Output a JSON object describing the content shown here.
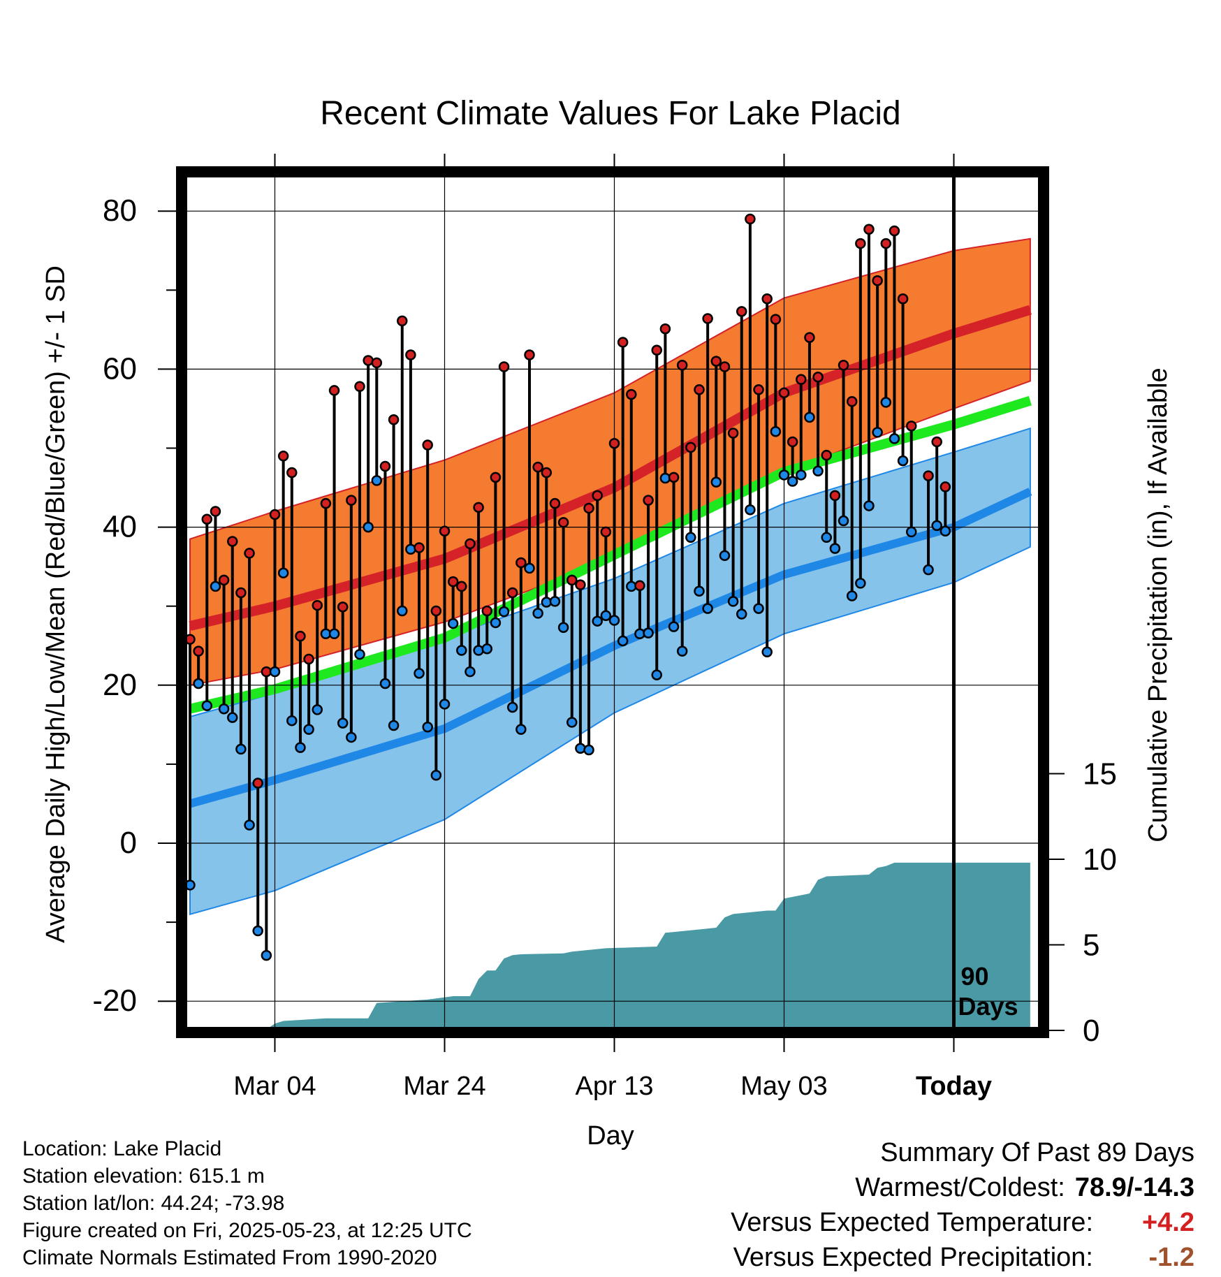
{
  "chart_data": {
    "type": "line",
    "title": "Recent Climate Values For Lake Placid",
    "xlabel": "Day",
    "ylabel": "Average Daily High/Low/Mean (Red/Blue/Green) +/- 1 SD",
    "y2label": "Cumulative Precipitation (in), If Available",
    "x_start_date": "2025-02-22",
    "x_end_date": "2025-06-01",
    "today_date": "2025-05-23",
    "today_label": "Today",
    "today_annotation": [
      "90",
      "Days"
    ],
    "ylim": [
      -24,
      85
    ],
    "y_ticks": [
      -20,
      0,
      20,
      40,
      60,
      80
    ],
    "y2lim": [
      0,
      20
    ],
    "y2_ticks": [
      0,
      5,
      10,
      15
    ],
    "x_tick_dates": [
      "2025-03-04",
      "2025-03-24",
      "2025-04-13",
      "2025-05-03",
      "2025-05-23"
    ],
    "x_tick_labels": [
      "Mar 04",
      "Mar 24",
      "Apr 13",
      "May 03",
      "Today"
    ],
    "grid": true,
    "normals": {
      "x": [
        "2025-02-22",
        "2025-03-04",
        "2025-03-24",
        "2025-04-13",
        "2025-05-03",
        "2025-05-23",
        "2025-06-01"
      ],
      "high_mean": [
        27.5,
        30.0,
        36.0,
        45.0,
        57.0,
        64.5,
        67.5
      ],
      "high_upper": [
        38.5,
        42.0,
        48.5,
        57.0,
        69.0,
        75.0,
        76.5
      ],
      "high_lower": [
        20.0,
        22.0,
        28.0,
        36.0,
        47.0,
        55.0,
        58.5
      ],
      "avg_mean": [
        17.0,
        19.5,
        26.0,
        36.5,
        47.0,
        53.0,
        56.0
      ],
      "low_mean": [
        5.0,
        8.0,
        14.5,
        25.0,
        34.0,
        40.0,
        44.5
      ],
      "low_upper": [
        16.0,
        19.0,
        26.0,
        33.5,
        43.0,
        49.5,
        52.5
      ],
      "low_lower": [
        -9.0,
        -6.0,
        3.0,
        16.5,
        26.5,
        33.0,
        37.5
      ]
    },
    "series": [
      {
        "name": "Daily High",
        "color": "#d32020",
        "x": [
          "2025-02-22",
          "2025-02-23",
          "2025-02-24",
          "2025-02-25",
          "2025-02-26",
          "2025-02-27",
          "2025-02-28",
          "2025-03-01",
          "2025-03-02",
          "2025-03-03",
          "2025-03-04",
          "2025-03-05",
          "2025-03-06",
          "2025-03-07",
          "2025-03-08",
          "2025-03-09",
          "2025-03-10",
          "2025-03-11",
          "2025-03-12",
          "2025-03-13",
          "2025-03-14",
          "2025-03-15",
          "2025-03-16",
          "2025-03-17",
          "2025-03-18",
          "2025-03-19",
          "2025-03-20",
          "2025-03-21",
          "2025-03-22",
          "2025-03-23",
          "2025-03-24",
          "2025-03-25",
          "2025-03-26",
          "2025-03-27",
          "2025-03-28",
          "2025-03-29",
          "2025-03-30",
          "2025-03-31",
          "2025-04-01",
          "2025-04-02",
          "2025-04-03",
          "2025-04-04",
          "2025-04-05",
          "2025-04-06",
          "2025-04-07",
          "2025-04-08",
          "2025-04-09",
          "2025-04-10",
          "2025-04-11",
          "2025-04-12",
          "2025-04-13",
          "2025-04-14",
          "2025-04-15",
          "2025-04-16",
          "2025-04-17",
          "2025-04-18",
          "2025-04-19",
          "2025-04-20",
          "2025-04-21",
          "2025-04-22",
          "2025-04-23",
          "2025-04-24",
          "2025-04-25",
          "2025-04-26",
          "2025-04-27",
          "2025-04-28",
          "2025-04-29",
          "2025-04-30",
          "2025-05-01",
          "2025-05-02",
          "2025-05-03",
          "2025-05-04",
          "2025-05-05",
          "2025-05-06",
          "2025-05-07",
          "2025-05-08",
          "2025-05-09",
          "2025-05-10",
          "2025-05-11",
          "2025-05-12",
          "2025-05-13",
          "2025-05-14",
          "2025-05-15",
          "2025-05-16",
          "2025-05-17",
          "2025-05-18",
          "2025-05-19",
          "2025-05-20",
          "2025-05-21",
          "2025-05-22"
        ],
        "values": [
          25.8,
          24.3,
          41.0,
          42.0,
          33.3,
          38.2,
          31.7,
          36.7,
          7.6,
          21.7,
          41.6,
          49.0,
          46.9,
          26.2,
          23.3,
          30.1,
          43.0,
          57.3,
          29.9,
          43.4,
          57.8,
          61.1,
          60.8,
          47.7,
          53.6,
          66.1,
          61.8,
          37.4,
          50.4,
          29.4,
          39.5,
          33.1,
          32.5,
          37.9,
          42.5,
          29.4,
          46.3,
          60.3,
          31.7,
          35.5,
          61.8,
          47.6,
          46.9,
          43.0,
          40.6,
          33.3,
          32.7,
          42.4,
          44.0,
          39.4,
          50.6,
          63.4,
          56.8,
          32.6,
          43.4,
          62.4,
          65.1,
          46.3,
          60.5,
          50.1,
          57.4,
          66.4,
          61.0,
          60.3,
          51.9,
          67.3,
          79.0,
          57.4,
          68.9,
          66.3,
          57.0,
          50.8,
          58.7,
          64.0,
          59.0,
          49.1,
          44.0,
          60.5,
          55.9,
          75.9,
          77.7,
          71.2,
          75.9,
          77.5,
          68.9,
          52.8,
          null,
          46.5,
          50.8,
          45.1
        ]
      },
      {
        "name": "Daily Low",
        "color": "#1f87e6",
        "x": [
          "2025-02-22",
          "2025-02-23",
          "2025-02-24",
          "2025-02-25",
          "2025-02-26",
          "2025-02-27",
          "2025-02-28",
          "2025-03-01",
          "2025-03-02",
          "2025-03-03",
          "2025-03-04",
          "2025-03-05",
          "2025-03-06",
          "2025-03-07",
          "2025-03-08",
          "2025-03-09",
          "2025-03-10",
          "2025-03-11",
          "2025-03-12",
          "2025-03-13",
          "2025-03-14",
          "2025-03-15",
          "2025-03-16",
          "2025-03-17",
          "2025-03-18",
          "2025-03-19",
          "2025-03-20",
          "2025-03-21",
          "2025-03-22",
          "2025-03-23",
          "2025-03-24",
          "2025-03-25",
          "2025-03-26",
          "2025-03-27",
          "2025-03-28",
          "2025-03-29",
          "2025-03-30",
          "2025-03-31",
          "2025-04-01",
          "2025-04-02",
          "2025-04-03",
          "2025-04-04",
          "2025-04-05",
          "2025-04-06",
          "2025-04-07",
          "2025-04-08",
          "2025-04-09",
          "2025-04-10",
          "2025-04-11",
          "2025-04-12",
          "2025-04-13",
          "2025-04-14",
          "2025-04-15",
          "2025-04-16",
          "2025-04-17",
          "2025-04-18",
          "2025-04-19",
          "2025-04-20",
          "2025-04-21",
          "2025-04-22",
          "2025-04-23",
          "2025-04-24",
          "2025-04-25",
          "2025-04-26",
          "2025-04-27",
          "2025-04-28",
          "2025-04-29",
          "2025-04-30",
          "2025-05-01",
          "2025-05-02",
          "2025-05-03",
          "2025-05-04",
          "2025-05-05",
          "2025-05-06",
          "2025-05-07",
          "2025-05-08",
          "2025-05-09",
          "2025-05-10",
          "2025-05-11",
          "2025-05-12",
          "2025-05-13",
          "2025-05-14",
          "2025-05-15",
          "2025-05-16",
          "2025-05-17",
          "2025-05-18",
          "2025-05-19",
          "2025-05-20",
          "2025-05-21",
          "2025-05-22"
        ],
        "values": [
          -5.3,
          20.2,
          17.4,
          32.5,
          17.0,
          15.9,
          11.9,
          2.3,
          -11.1,
          -14.2,
          21.7,
          34.2,
          15.5,
          12.1,
          14.4,
          16.9,
          26.5,
          26.5,
          15.2,
          13.4,
          23.9,
          40.0,
          45.9,
          20.2,
          14.9,
          29.4,
          37.2,
          21.5,
          14.7,
          8.6,
          17.6,
          27.8,
          24.4,
          21.7,
          24.4,
          24.6,
          27.9,
          29.3,
          17.2,
          14.4,
          34.8,
          29.1,
          30.5,
          30.6,
          27.3,
          15.3,
          12.0,
          11.8,
          28.1,
          28.8,
          28.2,
          25.6,
          32.5,
          26.5,
          26.6,
          21.3,
          46.2,
          27.4,
          24.3,
          38.7,
          31.9,
          29.7,
          45.7,
          36.4,
          30.6,
          29.0,
          42.2,
          29.7,
          24.2,
          52.1,
          46.6,
          45.8,
          46.6,
          53.9,
          47.1,
          38.7,
          37.3,
          40.8,
          31.3,
          32.9,
          42.7,
          52.0,
          55.8,
          51.2,
          48.4,
          39.4,
          null,
          34.6,
          40.2,
          39.5
        ]
      }
    ],
    "precipitation": {
      "name": "Cumulative Precipitation",
      "color": "#4a9aa5",
      "x": [
        "2025-02-22",
        "2025-03-03",
        "2025-03-04",
        "2025-03-05",
        "2025-03-10",
        "2025-03-15",
        "2025-03-16",
        "2025-03-22",
        "2025-03-25",
        "2025-03-27",
        "2025-03-28",
        "2025-03-29",
        "2025-03-30",
        "2025-03-31",
        "2025-04-01",
        "2025-04-02",
        "2025-04-07",
        "2025-04-08",
        "2025-04-12",
        "2025-04-18",
        "2025-04-19",
        "2025-04-20",
        "2025-04-25",
        "2025-04-26",
        "2025-04-27",
        "2025-05-01",
        "2025-05-02",
        "2025-05-03",
        "2025-05-06",
        "2025-05-07",
        "2025-05-08",
        "2025-05-13",
        "2025-05-14",
        "2025-05-15",
        "2025-05-16",
        "2025-05-23",
        "2025-06-01"
      ],
      "values": [
        0.0,
        0.05,
        0.4,
        0.55,
        0.7,
        0.7,
        1.6,
        1.8,
        2.0,
        2.0,
        3.0,
        3.5,
        3.5,
        4.2,
        4.4,
        4.45,
        4.5,
        4.6,
        4.8,
        4.9,
        5.7,
        5.75,
        6.0,
        6.6,
        6.8,
        7.0,
        7.0,
        7.7,
        8.0,
        8.8,
        9.0,
        9.1,
        9.5,
        9.6,
        9.8,
        9.8,
        9.8
      ]
    }
  },
  "footer": {
    "location": "Location: Lake Placid",
    "elevation": "Station elevation: 615.1 m",
    "latlon": "Station lat/lon: 44.24; -73.98",
    "created": "Figure created on Fri, 2025-05-23, at 12:25 UTC",
    "normals": "Climate Normals Estimated From 1990-2020"
  },
  "summary": {
    "title": "Summary Of Past 89 Days",
    "warm_cold_label": "Warmest/Coldest:",
    "warm_cold_value": "78.9/-14.3",
    "temp_label": "Versus Expected Temperature:",
    "temp_value": "+4.2",
    "temp_color": "#d32020",
    "precip_label": "Versus Expected Precipitation:",
    "precip_value": "-1.2",
    "precip_color": "#a0522d"
  },
  "colors": {
    "high_band": "#f47b30",
    "high_line": "#d42228",
    "low_band": "#85c3ea",
    "low_line": "#1f87e6",
    "avg_line": "#1ee81e",
    "overlap": "#a01818",
    "precip": "#4a9aa5"
  }
}
